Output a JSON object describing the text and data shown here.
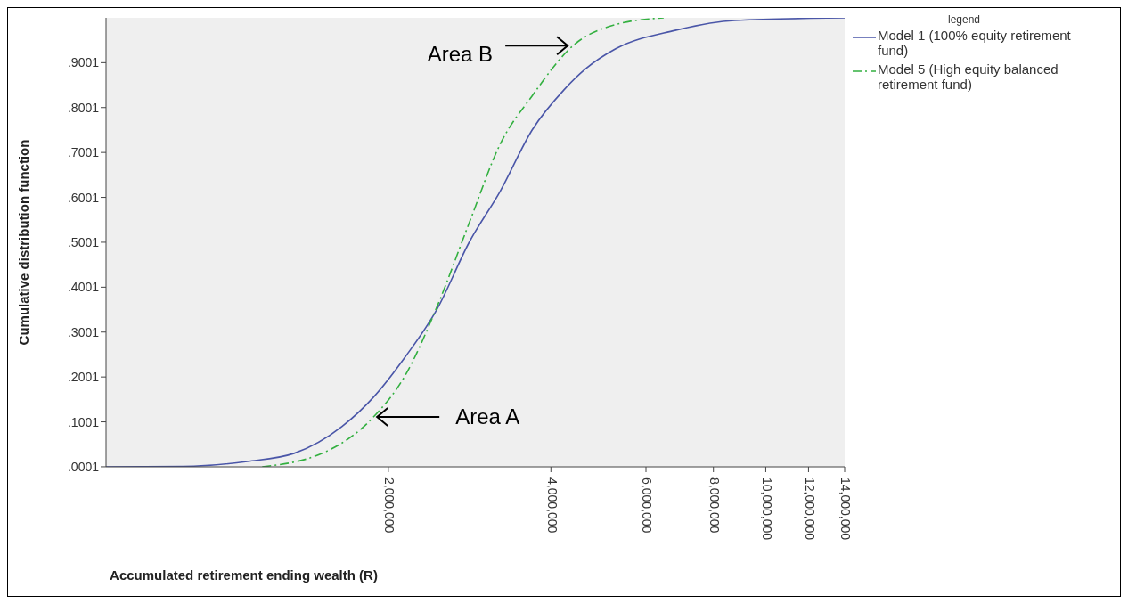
{
  "chart_data": {
    "type": "line",
    "xlabel": "Accumulated retirement ending wealth (R)",
    "ylabel": "Cumulative distribution function",
    "legend_title": "legend",
    "legend": "top right",
    "log": "x",
    "marker": "none",
    "xlim": [
      600000,
      14000000
    ],
    "xticks": [
      {
        "value": 2000000,
        "label": "2,000,000"
      },
      {
        "value": 4000000,
        "label": "4,000,000"
      },
      {
        "value": 6000000,
        "label": "6,000,000"
      },
      {
        "value": 8000000,
        "label": "8,000,000"
      },
      {
        "value": 10000000,
        "label": "10,000,000"
      },
      {
        "value": 12000000,
        "label": "12,000,000"
      },
      {
        "value": 14000000,
        "label": "14,000,000"
      }
    ],
    "ylim": [
      0,
      1
    ],
    "yticks": [
      {
        "value": 0.0001,
        "label": ".0001"
      },
      {
        "value": 0.1001,
        "label": ".1001"
      },
      {
        "value": 0.2001,
        "label": ".2001"
      },
      {
        "value": 0.3001,
        "label": ".3001"
      },
      {
        "value": 0.4001,
        "label": ".4001"
      },
      {
        "value": 0.5001,
        "label": ".5001"
      },
      {
        "value": 0.6001,
        "label": ".6001"
      },
      {
        "value": 0.7001,
        "label": ".7001"
      },
      {
        "value": 0.8001,
        "label": ".8001"
      },
      {
        "value": 0.9001,
        "label": ".9001"
      }
    ],
    "series": [
      {
        "name": "Model 1 (100% equity retirement fund)",
        "color": "#4a56a8",
        "line_style": "solid",
        "x": [
          600000,
          834000,
          1096000,
          1338000,
          1642000,
          1877000,
          2150000,
          2464000,
          2823000,
          3223000,
          3692000,
          4233000,
          4635000,
          5272000,
          6796000,
          8756000,
          14000000
        ],
        "values": [
          0,
          0.001,
          0.012,
          0.03,
          0.09,
          0.155,
          0.245,
          0.352,
          0.5,
          0.614,
          0.75,
          0.84,
          0.886,
          0.931,
          0.972,
          0.994,
          1.0
        ]
      },
      {
        "name": "Model 5 (High equity balanced retirement fund)",
        "color": "#33b040",
        "line_style": "dashed",
        "x": [
          1168000,
          1534000,
          1877000,
          2150000,
          2464000,
          2823000,
          3223000,
          3692000,
          4396000,
          5272000,
          6471000
        ],
        "values": [
          0,
          0.034,
          0.111,
          0.204,
          0.358,
          0.543,
          0.719,
          0.826,
          0.938,
          0.985,
          1.0
        ]
      }
    ],
    "annotations": [
      {
        "text": "Area A",
        "x": 1877000,
        "y": 0.111
      },
      {
        "text": "Area B",
        "x": 4396000,
        "y": 0.938
      }
    ]
  }
}
